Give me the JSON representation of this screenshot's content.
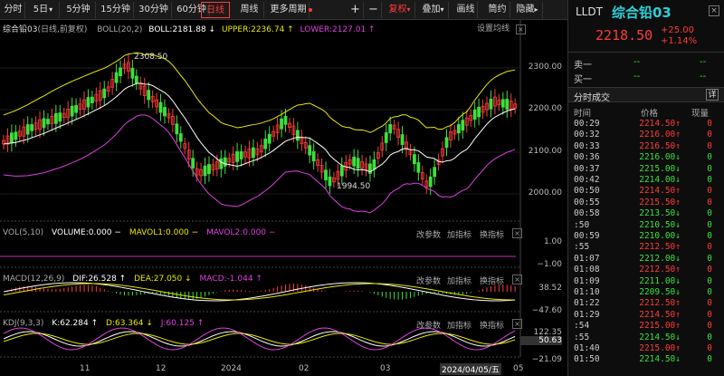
{
  "toolbar": {
    "buttons": [
      "分时",
      "5日",
      "5分钟",
      "15分钟",
      "30分钟",
      "60分钟",
      "日线",
      "周线",
      "更多周期",
      "+",
      "−",
      "复权",
      "叠加",
      "画线",
      "筒约",
      "隐藏"
    ],
    "active": "日线",
    "more_arrow": "▾",
    "fq_arrow": "▾",
    "overlay_arrow": "▾",
    "hide_arrow": "▸"
  },
  "main_chart": {
    "title": "综合铅03",
    "subtitle": "(日线,前复权)",
    "indicator": "BOLL(20,2)",
    "boll": "BOLL:2181.88 ↓",
    "upper": "UPPER:2236.74 ↑",
    "lower": "LOWER:2127.01 ↑",
    "settings_label": "设置均线",
    "y_ticks": [
      "2300.00",
      "2200.00",
      "2100.00",
      "2000.00"
    ],
    "high_label": "2308.50",
    "low_label": "1994.50"
  },
  "vol_panel": {
    "name": "VOL(5,10)",
    "volume": "VOLUME:0.000 −",
    "mavol1": "MAVOL1:0.000 −",
    "mavol2": "MAVOL2:0.000 −",
    "y_ticks": [
      "1.00",
      "−1.00"
    ]
  },
  "macd_panel": {
    "name": "MACD(12,26,9)",
    "dif": "DIF:26.528 ↑",
    "dea": "DEA:27.050 ↓",
    "macd": "MACD:-1.044 ↑",
    "y_ticks": [
      "38.52",
      "−47.60"
    ]
  },
  "kdj_panel": {
    "name": "KDJ(9,3,3)",
    "k": "K:62.284 ↑",
    "d": "D:63.364 ↓",
    "j": "J:60.125 ↑",
    "y_ticks": [
      "122.35",
      "50.63",
      "−21.09"
    ]
  },
  "indicator_buttons": [
    "改参数",
    "加指标",
    "换指标"
  ],
  "close_glyph": "×",
  "x_axis": [
    "11",
    "12",
    "2024",
    "02",
    "03",
    "2024/04/05/五",
    "05"
  ],
  "right_panel": {
    "symbol": "LLDT",
    "name": "综合铅03",
    "price": "2218.50",
    "change": "+25.00",
    "change_pct": "+1.14%",
    "sell_label": "卖一",
    "buy_label": "买一",
    "sell_price": "--",
    "sell_vol": "--",
    "buy_price": "--",
    "buy_vol": "--",
    "trades_title": "分时成交",
    "detail_btn": "详",
    "col_time": "时间",
    "col_price": "价格",
    "col_vol": "现量",
    "trades": [
      {
        "t": "00:29",
        "p": "2214.50",
        "d": "up",
        "v": "0"
      },
      {
        "t": "00:32",
        "p": "2216.00",
        "d": "up",
        "v": "0"
      },
      {
        "t": "00:33",
        "p": "2216.50",
        "d": "up",
        "v": "0"
      },
      {
        "t": "00:36",
        "p": "2216.00",
        "d": "down",
        "v": "0"
      },
      {
        "t": "00:37",
        "p": "2215.00",
        "d": "down",
        "v": "0"
      },
      {
        "t": "00:42",
        "p": "2214.00",
        "d": "down",
        "v": "0"
      },
      {
        "t": "00:50",
        "p": "2214.50",
        "d": "up",
        "v": "0"
      },
      {
        "t": "00:55",
        "p": "2215.50",
        "d": "up",
        "v": "0"
      },
      {
        "t": "00:58",
        "p": "2213.50",
        "d": "down",
        "v": "0"
      },
      {
        "t": ":50",
        "p": "2210.50",
        "d": "down",
        "v": "0"
      },
      {
        "t": "00:59",
        "p": "2210.00",
        "d": "down",
        "v": "0"
      },
      {
        "t": ":55",
        "p": "2212.50",
        "d": "up",
        "v": "0"
      },
      {
        "t": "01:07",
        "p": "2212.00",
        "d": "down",
        "v": "0"
      },
      {
        "t": "01:08",
        "p": "2212.50",
        "d": "up",
        "v": "0"
      },
      {
        "t": "01:09",
        "p": "2211.00",
        "d": "down",
        "v": "0"
      },
      {
        "t": "01:10",
        "p": "2209.50",
        "d": "down",
        "v": "0"
      },
      {
        "t": "01:22",
        "p": "2212.50",
        "d": "up",
        "v": "0"
      },
      {
        "t": "01:29",
        "p": "2214.50",
        "d": "up",
        "v": "0"
      },
      {
        "t": ":54",
        "p": "2215.00",
        "d": "up",
        "v": "0"
      },
      {
        "t": ":55",
        "p": "2214.50",
        "d": "down",
        "v": "0"
      },
      {
        "t": "01:40",
        "p": "2215.00",
        "d": "up",
        "v": "0"
      },
      {
        "t": "01:50",
        "p": "2214.50",
        "d": "down",
        "v": "0"
      }
    ]
  },
  "colors": {
    "up": "#ff3b3b",
    "down": "#3ce03c",
    "boll": "#ffffff",
    "upper": "#e8e800",
    "lower": "#e040e0",
    "accent": "#2ecfd8"
  }
}
